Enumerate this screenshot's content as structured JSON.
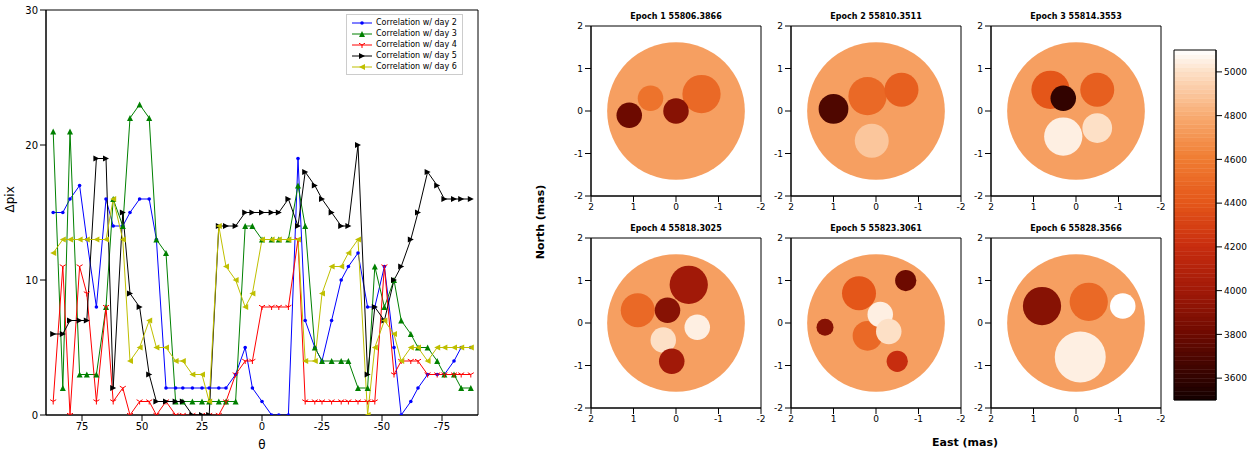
{
  "chart_data": [
    {
      "type": "line",
      "x_label": "θ",
      "y_label": "Δpix",
      "x": [
        87,
        83,
        80,
        76,
        73,
        69,
        65,
        62,
        58,
        55,
        51,
        47,
        44,
        40,
        36,
        33,
        29,
        25,
        22,
        18,
        15,
        11,
        7,
        4,
        0,
        -4,
        -7,
        -11,
        -15,
        -18,
        -22,
        -25,
        -29,
        -33,
        -36,
        -40,
        -44,
        -47,
        -51,
        -55,
        -58,
        -62,
        -65,
        -69,
        -73,
        -76,
        -80,
        -83,
        -87
      ],
      "xlim": [
        90,
        -90
      ],
      "xticks": [
        75,
        50,
        25,
        0,
        -25,
        -50,
        -75
      ],
      "ylim": [
        0,
        30
      ],
      "yticks": [
        0,
        10,
        20,
        30
      ],
      "legend": "upper right",
      "series": [
        {
          "name": "Correlation w/ day 2",
          "color": "#0000ff",
          "marker": "point",
          "values": [
            15,
            15,
            16,
            17,
            13,
            8,
            16,
            14,
            14,
            15,
            16,
            16,
            13,
            2,
            2,
            2,
            2,
            2,
            2,
            2,
            2,
            3,
            5,
            2,
            1,
            0,
            0,
            0,
            19,
            7,
            5,
            4,
            7,
            10,
            11,
            12,
            8,
            8,
            11,
            5,
            0,
            1,
            2,
            3,
            3,
            3,
            4,
            5,
            5
          ]
        },
        {
          "name": "Correlation w/ day 3",
          "color": "#008000",
          "marker": "triangle_up",
          "values": [
            21,
            2,
            21,
            3,
            3,
            3,
            8,
            16,
            14,
            22,
            23,
            22,
            13,
            12,
            1,
            1,
            1,
            1,
            1,
            1,
            1,
            1,
            14,
            14,
            13,
            13,
            13,
            13,
            17,
            14,
            5,
            4,
            4,
            4,
            4,
            2,
            2,
            11,
            8,
            10,
            7,
            6,
            5,
            5,
            4,
            3,
            3,
            2,
            2
          ]
        },
        {
          "name": "Correlation w/ day 4",
          "color": "#ff0000",
          "marker": "tri_down",
          "values": [
            1,
            11,
            0,
            11,
            9,
            1,
            8,
            1,
            2,
            0,
            1,
            1,
            0,
            1,
            0,
            0,
            0,
            0,
            0,
            0,
            1,
            3,
            4,
            4,
            8,
            8,
            8,
            8,
            13,
            1,
            1,
            1,
            1,
            1,
            1,
            1,
            1,
            1,
            11,
            3,
            4,
            4,
            4,
            3,
            3,
            3,
            3,
            3,
            3
          ]
        },
        {
          "name": "Correlation w/ day 5",
          "color": "#000000",
          "marker": "triangle_right",
          "values": [
            6,
            6,
            7,
            7,
            7,
            19,
            19,
            2,
            15,
            9,
            8,
            3,
            1,
            1,
            1,
            1,
            0,
            0,
            0,
            14,
            14,
            14,
            15,
            15,
            15,
            15,
            15,
            16,
            14,
            18,
            17,
            16,
            15,
            14,
            14,
            20,
            3,
            8,
            7,
            10,
            11,
            13,
            15,
            18,
            17,
            16,
            16,
            16,
            16
          ]
        },
        {
          "name": "Correlation w/ day 6",
          "color": "#bfbf00",
          "marker": "triangle_left",
          "values": [
            12,
            13,
            13,
            13,
            13,
            13,
            13,
            16,
            13,
            4,
            5,
            7,
            5,
            5,
            4,
            4,
            3,
            3,
            1,
            14,
            11,
            10,
            8,
            9,
            13,
            13,
            13,
            13,
            13,
            4,
            4,
            9,
            11,
            11,
            12,
            13,
            0,
            5,
            7,
            6,
            4,
            5,
            5,
            4,
            5,
            5,
            5,
            5,
            5
          ]
        }
      ]
    },
    {
      "type": "image_grid",
      "x_label": "East (mas)",
      "y_label": "North (mas)",
      "xlim": [
        2,
        -2
      ],
      "xticks": [
        2,
        1,
        0,
        -1,
        -2
      ],
      "ylim": [
        -2,
        2
      ],
      "yticks": [
        -2,
        -1,
        0,
        1,
        2
      ],
      "disc_center": [
        0,
        0
      ],
      "disc_radius": 1.62,
      "colorbar": {
        "range": [
          3500,
          5100
        ],
        "ticks": [
          3600,
          3800,
          4000,
          4200,
          4400,
          4600,
          4800,
          5000
        ]
      },
      "panels": [
        {
          "title": "Epoch 1 55806.3866",
          "base_temperature": 4750,
          "spots": [
            {
              "x": -0.6,
              "y": 0.4,
              "r": 0.45,
              "t": 4500
            },
            {
              "x": 0.6,
              "y": 0.3,
              "r": 0.3,
              "t": 4550
            },
            {
              "x": 1.1,
              "y": -0.1,
              "r": 0.3,
              "t": 3800
            },
            {
              "x": 0.0,
              "y": 0.0,
              "r": 0.3,
              "t": 3900
            }
          ]
        },
        {
          "title": "Epoch 2 55810.3511",
          "base_temperature": 4750,
          "spots": [
            {
              "x": 0.2,
              "y": 0.35,
              "r": 0.45,
              "t": 4500
            },
            {
              "x": -0.6,
              "y": 0.5,
              "r": 0.4,
              "t": 4450
            },
            {
              "x": 0.1,
              "y": -0.7,
              "r": 0.4,
              "t": 4900
            },
            {
              "x": 1.0,
              "y": 0.05,
              "r": 0.35,
              "t": 3700
            }
          ]
        },
        {
          "title": "Epoch 3 55814.3553",
          "base_temperature": 4750,
          "spots": [
            {
              "x": 0.6,
              "y": 0.5,
              "r": 0.45,
              "t": 4400
            },
            {
              "x": -0.5,
              "y": 0.5,
              "r": 0.4,
              "t": 4450
            },
            {
              "x": 0.3,
              "y": -0.6,
              "r": 0.45,
              "t": 5050
            },
            {
              "x": -0.5,
              "y": -0.4,
              "r": 0.35,
              "t": 5000
            },
            {
              "x": 0.3,
              "y": 0.3,
              "r": 0.3,
              "t": 3600
            }
          ]
        },
        {
          "title": "Epoch 4 55818.3025",
          "base_temperature": 4750,
          "spots": [
            {
              "x": 0.9,
              "y": 0.3,
              "r": 0.4,
              "t": 4500
            },
            {
              "x": -0.5,
              "y": -0.1,
              "r": 0.3,
              "t": 5050
            },
            {
              "x": 0.3,
              "y": -0.4,
              "r": 0.3,
              "t": 5000
            },
            {
              "x": -0.3,
              "y": 0.9,
              "r": 0.45,
              "t": 4000
            },
            {
              "x": 0.2,
              "y": 0.3,
              "r": 0.3,
              "t": 3900
            },
            {
              "x": 0.1,
              "y": -0.9,
              "r": 0.3,
              "t": 4000
            }
          ]
        },
        {
          "title": "Epoch 5 55823.3061",
          "base_temperature": 4750,
          "spots": [
            {
              "x": 0.4,
              "y": 0.7,
              "r": 0.4,
              "t": 4400
            },
            {
              "x": 0.2,
              "y": -0.3,
              "r": 0.35,
              "t": 4500
            },
            {
              "x": -0.1,
              "y": 0.2,
              "r": 0.3,
              "t": 5050
            },
            {
              "x": -0.3,
              "y": -0.2,
              "r": 0.3,
              "t": 5000
            },
            {
              "x": 1.2,
              "y": -0.1,
              "r": 0.2,
              "t": 3900
            },
            {
              "x": -0.7,
              "y": 1.0,
              "r": 0.25,
              "t": 3800
            },
            {
              "x": -0.5,
              "y": -0.9,
              "r": 0.25,
              "t": 4200
            }
          ]
        },
        {
          "title": "Epoch 6 55828.3566",
          "base_temperature": 4750,
          "spots": [
            {
              "x": -0.3,
              "y": 0.5,
              "r": 0.45,
              "t": 4500
            },
            {
              "x": -1.1,
              "y": 0.4,
              "r": 0.3,
              "t": 5100
            },
            {
              "x": -0.1,
              "y": -0.8,
              "r": 0.6,
              "t": 5050
            },
            {
              "x": 0.8,
              "y": 0.4,
              "r": 0.45,
              "t": 3900
            }
          ]
        }
      ]
    }
  ]
}
